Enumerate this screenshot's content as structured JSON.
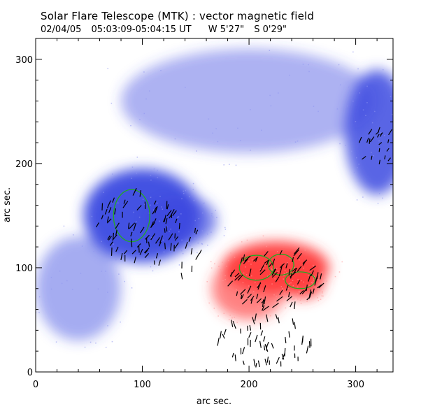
{
  "header": {
    "title": "Solar Flare Telescope (MTK) : vector magnetic field",
    "date": "02/04/05",
    "time_range": "05:03:09-05:04:15 UT",
    "pos_w": "W 5'27\"",
    "pos_s": "S 0'29\""
  },
  "chart_data": {
    "type": "heatmap",
    "title": "Solar Flare Telescope (MTK) : vector magnetic field",
    "xlabel": "arc sec.",
    "ylabel": "arc sec.",
    "xlim": [
      0,
      335
    ],
    "ylim": [
      0,
      320
    ],
    "x_ticks": [
      0,
      100,
      200,
      300
    ],
    "y_ticks": [
      0,
      100,
      200,
      300
    ],
    "colors": {
      "negative": "#3a48e0",
      "positive": "#ff3b3b",
      "contour": "#22aa22",
      "vector": "#000000"
    },
    "regions": [
      {
        "polarity": "negative",
        "cx": 100,
        "cy": 150,
        "rx": 55,
        "ry": 45,
        "strength": 1.0
      },
      {
        "polarity": "negative",
        "cx": 135,
        "cy": 145,
        "rx": 35,
        "ry": 25,
        "strength": 0.6
      },
      {
        "polarity": "negative",
        "cx": 320,
        "cy": 230,
        "rx": 30,
        "ry": 60,
        "strength": 0.85
      },
      {
        "polarity": "negative",
        "cx": 40,
        "cy": 80,
        "rx": 40,
        "ry": 50,
        "strength": 0.3
      },
      {
        "polarity": "negative",
        "cx": 200,
        "cy": 260,
        "rx": 120,
        "ry": 50,
        "strength": 0.25
      },
      {
        "polarity": "positive",
        "cx": 225,
        "cy": 100,
        "rx": 50,
        "ry": 25,
        "strength": 1.0
      },
      {
        "polarity": "positive",
        "cx": 200,
        "cy": 80,
        "rx": 35,
        "ry": 30,
        "strength": 0.55
      },
      {
        "polarity": "positive",
        "cx": 250,
        "cy": 85,
        "rx": 20,
        "ry": 15,
        "strength": 0.85
      }
    ],
    "contours": [
      {
        "polarity": "negative",
        "cx": 90,
        "cy": 150,
        "rx": 17,
        "ry": 25
      },
      {
        "polarity": "positive",
        "cx": 207,
        "cy": 100,
        "rx": 16,
        "ry": 12
      },
      {
        "polarity": "positive",
        "cx": 230,
        "cy": 103,
        "rx": 12,
        "ry": 10
      },
      {
        "polarity": "positive",
        "cx": 248,
        "cy": 88,
        "rx": 14,
        "ry": 8
      }
    ],
    "vector_clusters": [
      {
        "cx": 95,
        "cy": 140,
        "rx": 40,
        "ry": 35,
        "n": 70,
        "angle_deg": 290,
        "len": 10
      },
      {
        "cx": 130,
        "cy": 120,
        "rx": 25,
        "ry": 30,
        "n": 20,
        "angle_deg": 280,
        "len": 9
      },
      {
        "cx": 225,
        "cy": 90,
        "rx": 45,
        "ry": 30,
        "n": 85,
        "angle_deg": 300,
        "len": 10
      },
      {
        "cx": 215,
        "cy": 30,
        "rx": 45,
        "ry": 25,
        "n": 55,
        "angle_deg": 270,
        "len": 10
      },
      {
        "cx": 320,
        "cy": 220,
        "rx": 18,
        "ry": 25,
        "n": 20,
        "angle_deg": 300,
        "len": 8
      }
    ]
  }
}
